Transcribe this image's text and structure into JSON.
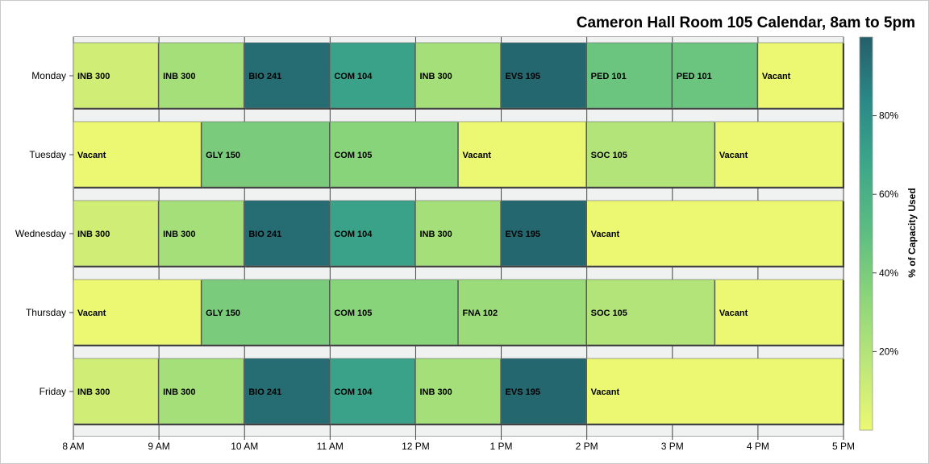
{
  "chart_data": {
    "type": "bar",
    "subtype": "timeline-heatmap",
    "title": "Cameron Hall Room 105 Calendar, 8am to 5pm",
    "x_axis": {
      "range_hours": [
        8,
        17
      ],
      "ticks": [
        {
          "value": 8,
          "label": "8 AM"
        },
        {
          "value": 9,
          "label": "9 AM"
        },
        {
          "value": 10,
          "label": "10 AM"
        },
        {
          "value": 11,
          "label": "11 AM"
        },
        {
          "value": 12,
          "label": "12 PM"
        },
        {
          "value": 13,
          "label": "1 PM"
        },
        {
          "value": 14,
          "label": "2 PM"
        },
        {
          "value": 15,
          "label": "3 PM"
        },
        {
          "value": 16,
          "label": "4 PM"
        },
        {
          "value": 17,
          "label": "5 PM"
        }
      ]
    },
    "colorbar": {
      "title": "% of Capacity Used",
      "range": [
        0,
        100
      ],
      "ticks": [
        {
          "value": 20,
          "label": "20%"
        },
        {
          "value": 40,
          "label": "40%"
        },
        {
          "value": 60,
          "label": "60%"
        },
        {
          "value": 80,
          "label": "80%"
        }
      ],
      "colors": [
        "#ecf872",
        "#bde779",
        "#8dd679",
        "#5dbe81",
        "#3ea889",
        "#2a8a88",
        "#245f6a"
      ]
    },
    "days": [
      {
        "day": "Monday",
        "events": [
          {
            "label": "INB 300",
            "start": 8,
            "end": 9,
            "capacity": 10
          },
          {
            "label": "INB 300",
            "start": 9,
            "end": 10,
            "capacity": 25
          },
          {
            "label": "BIO 241",
            "start": 10,
            "end": 11,
            "capacity": 95
          },
          {
            "label": "COM 104",
            "start": 11,
            "end": 12,
            "capacity": 70
          },
          {
            "label": "INB 300",
            "start": 12,
            "end": 13,
            "capacity": 25
          },
          {
            "label": "EVS 195",
            "start": 13,
            "end": 14,
            "capacity": 97
          },
          {
            "label": "PED 101",
            "start": 14,
            "end": 15,
            "capacity": 45
          },
          {
            "label": "PED 101",
            "start": 15,
            "end": 16,
            "capacity": 45
          },
          {
            "label": "Vacant",
            "start": 16,
            "end": 17,
            "capacity": 0
          }
        ]
      },
      {
        "day": "Tuesday",
        "events": [
          {
            "label": "Vacant",
            "start": 8,
            "end": 9.5,
            "capacity": 0
          },
          {
            "label": "GLY 150",
            "start": 9.5,
            "end": 11,
            "capacity": 40
          },
          {
            "label": "COM 105",
            "start": 11,
            "end": 12.5,
            "capacity": 35
          },
          {
            "label": "Vacant",
            "start": 12.5,
            "end": 14,
            "capacity": 0
          },
          {
            "label": "SOC 105",
            "start": 14,
            "end": 15.5,
            "capacity": 20
          },
          {
            "label": "Vacant",
            "start": 15.5,
            "end": 17,
            "capacity": 0
          }
        ]
      },
      {
        "day": "Wednesday",
        "events": [
          {
            "label": "INB 300",
            "start": 8,
            "end": 9,
            "capacity": 10
          },
          {
            "label": "INB 300",
            "start": 9,
            "end": 10,
            "capacity": 25
          },
          {
            "label": "BIO 241",
            "start": 10,
            "end": 11,
            "capacity": 95
          },
          {
            "label": "COM 104",
            "start": 11,
            "end": 12,
            "capacity": 70
          },
          {
            "label": "INB 300",
            "start": 12,
            "end": 13,
            "capacity": 25
          },
          {
            "label": "EVS 195",
            "start": 13,
            "end": 14,
            "capacity": 97
          },
          {
            "label": "Vacant",
            "start": 14,
            "end": 17,
            "capacity": 0
          }
        ]
      },
      {
        "day": "Thursday",
        "events": [
          {
            "label": "Vacant",
            "start": 8,
            "end": 9.5,
            "capacity": 0
          },
          {
            "label": "GLY 150",
            "start": 9.5,
            "end": 11,
            "capacity": 40
          },
          {
            "label": "COM 105",
            "start": 11,
            "end": 12.5,
            "capacity": 35
          },
          {
            "label": "FNA 102",
            "start": 12.5,
            "end": 14,
            "capacity": 28
          },
          {
            "label": "SOC 105",
            "start": 14,
            "end": 15.5,
            "capacity": 20
          },
          {
            "label": "Vacant",
            "start": 15.5,
            "end": 17,
            "capacity": 0
          }
        ]
      },
      {
        "day": "Friday",
        "events": [
          {
            "label": "INB 300",
            "start": 8,
            "end": 9,
            "capacity": 10
          },
          {
            "label": "INB 300",
            "start": 9,
            "end": 10,
            "capacity": 25
          },
          {
            "label": "BIO 241",
            "start": 10,
            "end": 11,
            "capacity": 95
          },
          {
            "label": "COM 104",
            "start": 11,
            "end": 12,
            "capacity": 70
          },
          {
            "label": "INB 300",
            "start": 12,
            "end": 13,
            "capacity": 25
          },
          {
            "label": "EVS 195",
            "start": 13,
            "end": 14,
            "capacity": 97
          },
          {
            "label": "Vacant",
            "start": 14,
            "end": 17,
            "capacity": 0
          }
        ]
      }
    ]
  }
}
